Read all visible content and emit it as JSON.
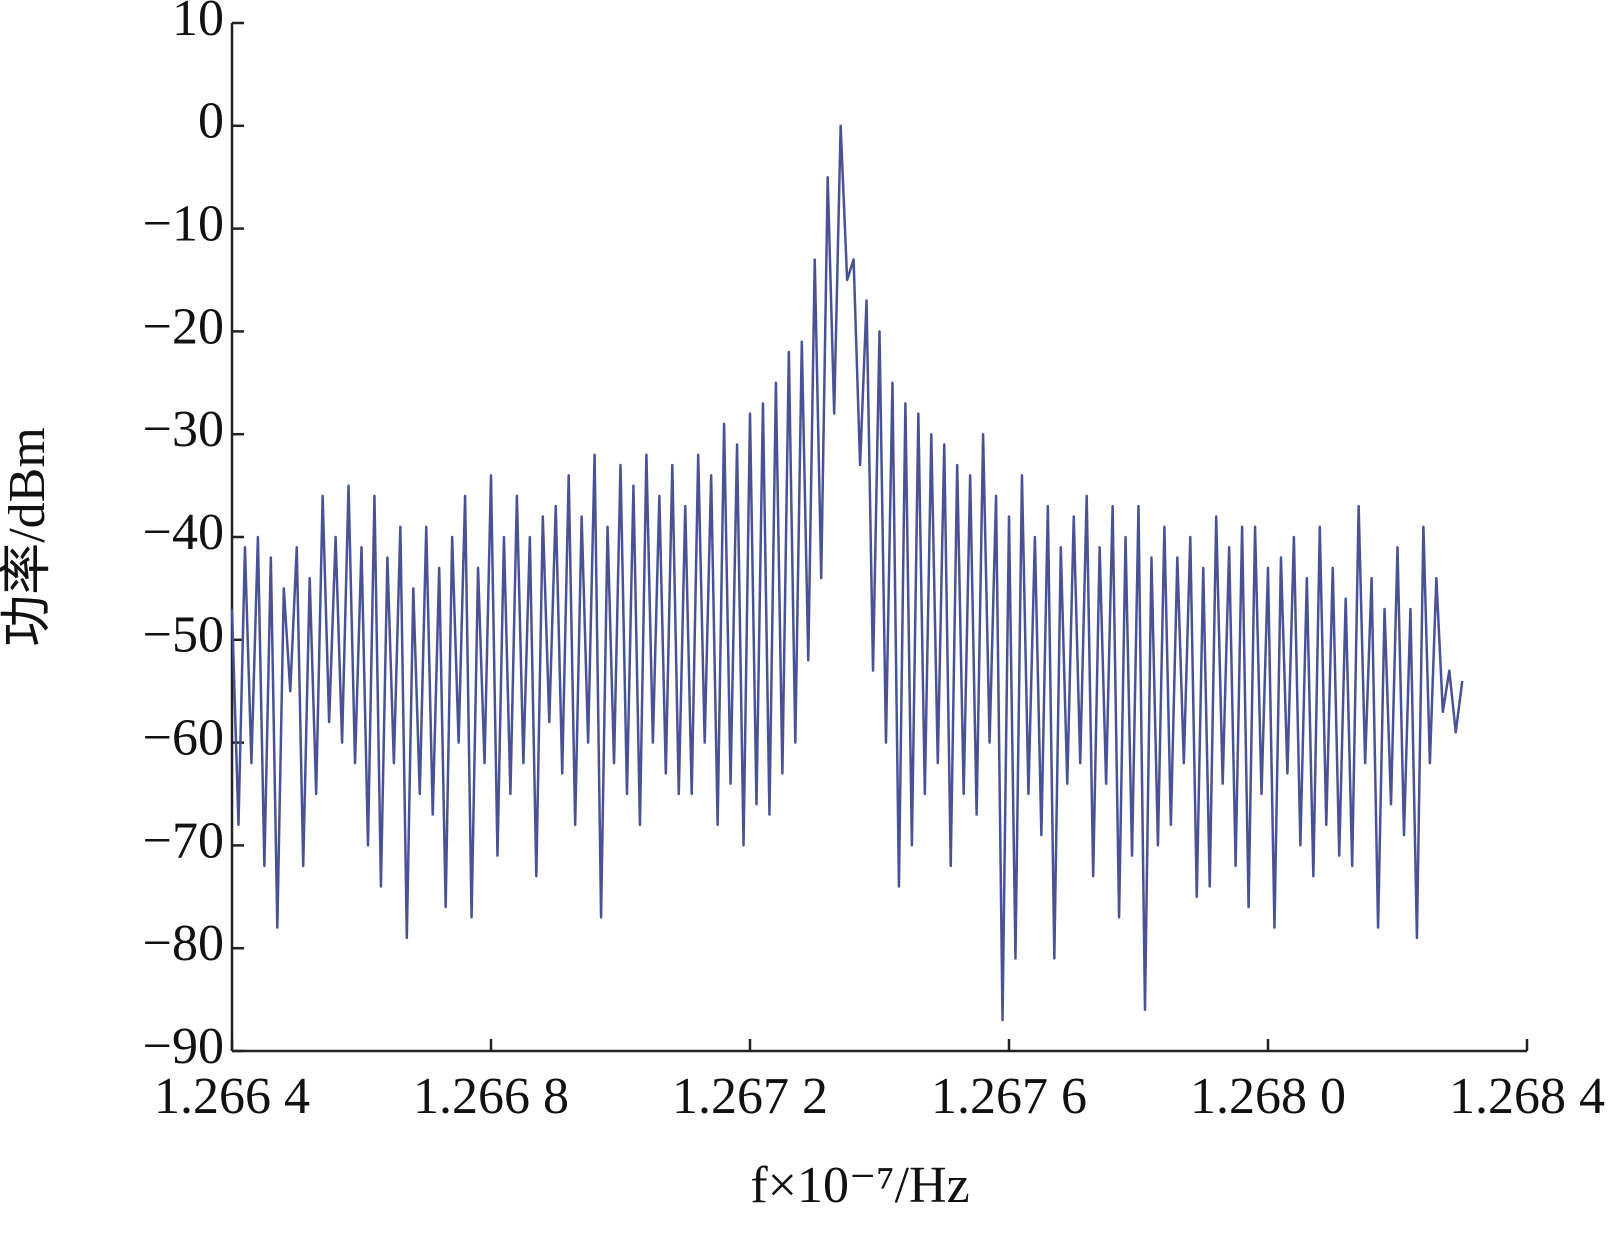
{
  "chart_data": {
    "type": "line",
    "ylabel": "功率/dBm",
    "xlabel": "f×10⁻⁷/Hz",
    "xlim": [
      1.2664,
      1.2684
    ],
    "xticks": [
      {
        "value": 1.2664,
        "label": "1.266 4"
      },
      {
        "value": 1.2668,
        "label": "1.266 8"
      },
      {
        "value": 1.2672,
        "label": "1.267 2"
      },
      {
        "value": 1.2676,
        "label": "1.267 6"
      },
      {
        "value": 1.268,
        "label": "1.268 0"
      },
      {
        "value": 1.2684,
        "label": "1.268 4"
      }
    ],
    "ylim": [
      -90,
      10
    ],
    "yticks": [
      10,
      0,
      {
        "value": -10,
        "label": "−10"
      },
      {
        "value": -20,
        "label": "−20"
      },
      {
        "value": -30,
        "label": "−30"
      },
      {
        "value": -40,
        "label": "−40"
      },
      {
        "value": -50,
        "label": "−50"
      },
      {
        "value": -60,
        "label": "−60"
      },
      {
        "value": -70,
        "label": "−70"
      },
      {
        "value": -80,
        "label": "−80"
      },
      {
        "value": -90,
        "label": "−90"
      }
    ],
    "grid": false,
    "x": [
      1.2664,
      1.26641,
      1.26642,
      1.26643,
      1.26644,
      1.26645,
      1.26646,
      1.26647,
      1.26648,
      1.26649,
      1.2665,
      1.26651,
      1.26652,
      1.26653,
      1.26654,
      1.26655,
      1.26656,
      1.26657,
      1.26658,
      1.26659,
      1.2666,
      1.26661,
      1.26662,
      1.26663,
      1.26664,
      1.26665,
      1.26666,
      1.26667,
      1.26668,
      1.26669,
      1.2667,
      1.26671,
      1.26672,
      1.26673,
      1.26674,
      1.26675,
      1.26676,
      1.26677,
      1.26678,
      1.26679,
      1.2668,
      1.26681,
      1.26682,
      1.26683,
      1.26684,
      1.26685,
      1.26686,
      1.26687,
      1.26688,
      1.26689,
      1.2669,
      1.26691,
      1.26692,
      1.26693,
      1.26694,
      1.26695,
      1.26696,
      1.26697,
      1.26698,
      1.26699,
      1.267,
      1.26701,
      1.26702,
      1.26703,
      1.26704,
      1.26705,
      1.26706,
      1.26707,
      1.26708,
      1.26709,
      1.2671,
      1.26711,
      1.26712,
      1.26713,
      1.26714,
      1.26715,
      1.26716,
      1.26717,
      1.26718,
      1.26719,
      1.2672,
      1.26721,
      1.26722,
      1.26723,
      1.26724,
      1.26725,
      1.26726,
      1.26727,
      1.26728,
      1.26729,
      1.2673,
      1.26731,
      1.26732,
      1.26733,
      1.26734,
      1.26735,
      1.26736,
      1.26737,
      1.26738,
      1.26739,
      1.2674,
      1.26741,
      1.26742,
      1.26743,
      1.26744,
      1.26745,
      1.26746,
      1.26747,
      1.26748,
      1.26749,
      1.2675,
      1.26751,
      1.26752,
      1.26753,
      1.26754,
      1.26755,
      1.26756,
      1.26757,
      1.26758,
      1.26759,
      1.2676,
      1.26761,
      1.26762,
      1.26763,
      1.26764,
      1.26765,
      1.26766,
      1.26767,
      1.26768,
      1.26769,
      1.2677,
      1.26771,
      1.26772,
      1.26773,
      1.26774,
      1.26775,
      1.26776,
      1.26777,
      1.26778,
      1.26779,
      1.2678,
      1.26781,
      1.26782,
      1.26783,
      1.26784,
      1.26785,
      1.26786,
      1.26787,
      1.26788,
      1.26789,
      1.2679,
      1.26791,
      1.26792,
      1.26793,
      1.26794,
      1.26795,
      1.26796,
      1.26797,
      1.26798,
      1.26799,
      1.268,
      1.26801,
      1.26802,
      1.26803,
      1.26804,
      1.26805,
      1.26806,
      1.26807,
      1.26808,
      1.26809,
      1.2681,
      1.26811,
      1.26812,
      1.26813,
      1.26814,
      1.26815,
      1.26816,
      1.26817,
      1.26818,
      1.26819,
      1.2682,
      1.26821,
      1.26822,
      1.26823,
      1.26824,
      1.26825,
      1.26826,
      1.26827,
      1.26828,
      1.26829,
      1.2683
    ],
    "series": [
      {
        "color": "#4a5296",
        "values": [
          -47,
          -68,
          -41,
          -62,
          -40,
          -72,
          -42,
          -78,
          -45,
          -55,
          -41,
          -72,
          -44,
          -65,
          -36,
          -58,
          -40,
          -60,
          -35,
          -62,
          -41,
          -70,
          -36,
          -74,
          -42,
          -62,
          -39,
          -79,
          -45,
          -65,
          -39,
          -67,
          -43,
          -76,
          -40,
          -60,
          -36,
          -77,
          -43,
          -62,
          -34,
          -71,
          -40,
          -65,
          -36,
          -62,
          -40,
          -73,
          -38,
          -58,
          -37,
          -63,
          -34,
          -68,
          -38,
          -60,
          -32,
          -77,
          -39,
          -62,
          -33,
          -65,
          -35,
          -68,
          -32,
          -60,
          -36,
          -63,
          -33,
          -65,
          -37,
          -65,
          -32,
          -60,
          -34,
          -68,
          -29,
          -64,
          -31,
          -70,
          -28,
          -66,
          -27,
          -67,
          -25,
          -63,
          -22,
          -60,
          -21,
          -52,
          -13,
          -44,
          -5,
          -28,
          0,
          -15,
          -13,
          -33,
          -17,
          -53,
          -20,
          -60,
          -25,
          -74,
          -27,
          -70,
          -28,
          -65,
          -30,
          -62,
          -31,
          -72,
          -33,
          -65,
          -34,
          -67,
          -30,
          -60,
          -36,
          -87,
          -38,
          -81,
          -34,
          -65,
          -40,
          -69,
          -37,
          -81,
          -41,
          -64,
          -38,
          -62,
          -36,
          -73,
          -41,
          -64,
          -37,
          -77,
          -40,
          -71,
          -37,
          -86,
          -42,
          -70,
          -39,
          -68,
          -42,
          -62,
          -40,
          -75,
          -43,
          -74,
          -38,
          -64,
          -41,
          -72,
          -39,
          -76,
          -39,
          -65,
          -43,
          -78,
          -42,
          -63,
          -40,
          -70,
          -44,
          -73,
          -39,
          -68,
          -43,
          -71,
          -46,
          -72,
          -37,
          -62,
          -44,
          -78,
          -47,
          -66,
          -41,
          -69,
          -47,
          -79,
          -39,
          -62,
          -44,
          -57,
          -53,
          -59,
          -54
        ]
      }
    ]
  }
}
